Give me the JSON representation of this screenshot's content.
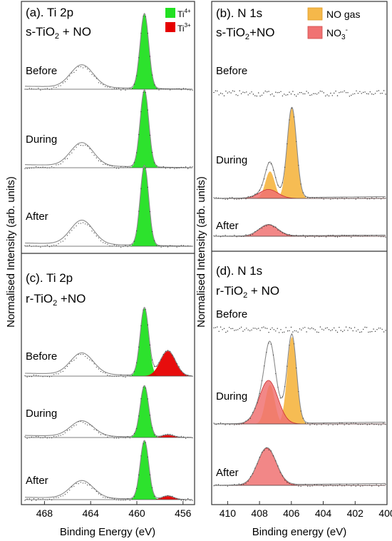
{
  "colors": {
    "ti4": "#22e022",
    "ti3": "#e60000",
    "no_gas": "#f5b84a",
    "no3": "#f07272",
    "envelope": "#8a8a8a",
    "data_points": "#333333",
    "frame": "#333333"
  },
  "y_axis_label": "Normalised Intensity (arb. units)",
  "chart_data": [
    {
      "type": "line",
      "panel": "a",
      "title_line1": "(a). Ti 2p",
      "title_line2_main": "s-TiO",
      "title_line2_sub": "2",
      "title_line2_rest": " + NO",
      "legend": [
        {
          "main": "Ti",
          "sup": "4+",
          "color_key": "ti4"
        },
        {
          "main": "Ti",
          "sup": "3+",
          "color_key": "ti3"
        }
      ],
      "xlim": [
        470,
        455
      ],
      "x_reversed": true,
      "spectra": [
        {
          "label": "Before",
          "components": [
            {
              "name": "Ti4+",
              "center": 459.3,
              "fwhm": 0.9,
              "height": 1.0
            }
          ],
          "p12": {
            "center": 464.9,
            "fwhm": 2.4,
            "height": 0.3
          }
        },
        {
          "label": "During",
          "components": [
            {
              "name": "Ti4+",
              "center": 459.3,
              "fwhm": 0.9,
              "height": 1.0
            }
          ],
          "p12": {
            "center": 464.9,
            "fwhm": 2.4,
            "height": 0.3
          }
        },
        {
          "label": "After",
          "components": [
            {
              "name": "Ti4+",
              "center": 459.3,
              "fwhm": 0.9,
              "height": 1.0
            }
          ],
          "p12": {
            "center": 464.9,
            "fwhm": 2.4,
            "height": 0.3
          }
        }
      ]
    },
    {
      "type": "line",
      "panel": "b",
      "title_line1": "(b). N 1s",
      "title_line2_main": "s-TiO",
      "title_line2_sub": "2",
      "title_line2_rest": "+NO",
      "legend": [
        {
          "main": "NO gas",
          "sup": "",
          "color_key": "no_gas"
        },
        {
          "main": "NO",
          "sub": "3",
          "sup": "-",
          "color_key": "no3"
        }
      ],
      "xlim": [
        411,
        400
      ],
      "x_reversed": true,
      "spectra": [
        {
          "label": "Before",
          "components": []
        },
        {
          "label": "During",
          "components": [
            {
              "name": "NO gas",
              "center": 406.0,
              "fwhm": 0.7,
              "height": 1.0
            },
            {
              "name": "NO gas",
              "center": 407.4,
              "fwhm": 0.7,
              "height": 0.3
            },
            {
              "name": "NO3-",
              "center": 407.5,
              "fwhm": 1.4,
              "height": 0.1
            }
          ]
        },
        {
          "label": "After",
          "components": [
            {
              "name": "NO3-",
              "center": 407.5,
              "fwhm": 1.4,
              "height": 0.2
            }
          ]
        }
      ]
    },
    {
      "type": "line",
      "panel": "c",
      "title_line1": "(c). Ti 2p",
      "title_line2_main": "r-TiO",
      "title_line2_sub": "2",
      "title_line2_rest": " +NO",
      "xlim": [
        470,
        455
      ],
      "x_reversed": true,
      "x_ticks": [
        468,
        464,
        460,
        456
      ],
      "xlabel": "Binding Energy (eV)",
      "spectra": [
        {
          "label": "Before",
          "components": [
            {
              "name": "Ti4+",
              "center": 459.3,
              "fwhm": 0.9,
              "height": 0.95
            },
            {
              "name": "Ti3+",
              "center": 457.2,
              "fwhm": 1.6,
              "height": 0.35
            }
          ],
          "p12": {
            "center": 464.9,
            "fwhm": 2.4,
            "height": 0.3
          }
        },
        {
          "label": "During",
          "components": [
            {
              "name": "Ti4+",
              "center": 459.3,
              "fwhm": 0.9,
              "height": 1.0
            },
            {
              "name": "Ti3+",
              "center": 457.2,
              "fwhm": 1.2,
              "height": 0.05
            }
          ],
          "p12": {
            "center": 464.9,
            "fwhm": 2.4,
            "height": 0.3
          }
        },
        {
          "label": "After",
          "components": [
            {
              "name": "Ti4+",
              "center": 459.3,
              "fwhm": 0.9,
              "height": 1.0
            },
            {
              "name": "Ti3+",
              "center": 457.2,
              "fwhm": 1.2,
              "height": 0.06
            }
          ],
          "p12": {
            "center": 464.9,
            "fwhm": 2.4,
            "height": 0.3
          }
        }
      ]
    },
    {
      "type": "line",
      "panel": "d",
      "title_line1": "(d). N 1s",
      "title_line2_main": "r-TiO",
      "title_line2_sub": "2",
      "title_line2_rest": " + NO",
      "xlim": [
        411,
        400
      ],
      "x_reversed": true,
      "x_ticks": [
        410,
        408,
        406,
        404,
        402,
        400
      ],
      "xlabel": "Binding energy (eV)",
      "spectra": [
        {
          "label": "Before",
          "components": []
        },
        {
          "label": "During",
          "components": [
            {
              "name": "NO gas",
              "center": 406.0,
              "fwhm": 0.7,
              "height": 1.0
            },
            {
              "name": "NO gas",
              "center": 407.4,
              "fwhm": 0.7,
              "height": 0.45
            },
            {
              "name": "NO3-",
              "center": 407.5,
              "fwhm": 1.4,
              "height": 0.5
            }
          ]
        },
        {
          "label": "After",
          "components": [
            {
              "name": "NO3-",
              "center": 407.6,
              "fwhm": 1.4,
              "height": 0.4
            }
          ]
        }
      ]
    }
  ]
}
